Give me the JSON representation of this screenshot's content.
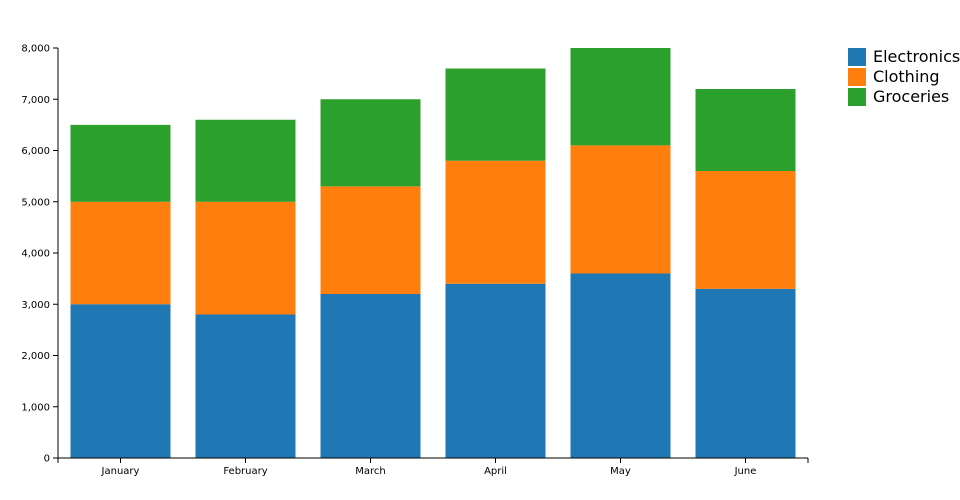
{
  "chart_data": {
    "type": "bar",
    "stacked": true,
    "categories": [
      "January",
      "February",
      "March",
      "April",
      "May",
      "June"
    ],
    "series": [
      {
        "name": "Electronics",
        "values": [
          3000,
          2800,
          3200,
          3400,
          3600,
          3300
        ],
        "color": "#1f77b4"
      },
      {
        "name": "Clothing",
        "values": [
          2000,
          2200,
          2100,
          2400,
          2500,
          2300
        ],
        "color": "#ff7f0e"
      },
      {
        "name": "Groceries",
        "values": [
          1500,
          1600,
          1700,
          1800,
          1900,
          1600
        ],
        "color": "#2ca02c"
      }
    ],
    "ylim": [
      0,
      8000
    ],
    "yticks": [
      "0",
      "1,000",
      "2,000",
      "3,000",
      "4,000",
      "5,000",
      "6,000",
      "7,000",
      "8,000"
    ],
    "grid": false,
    "legend_position": "top-right"
  }
}
